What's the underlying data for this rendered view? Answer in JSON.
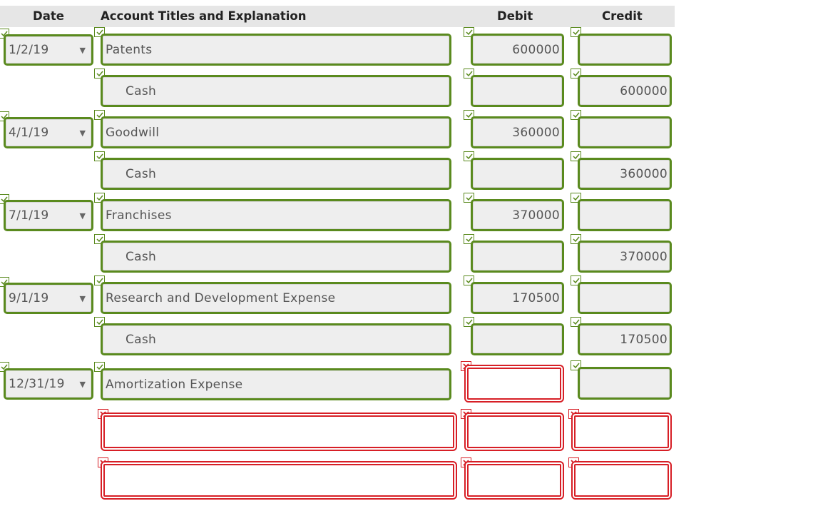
{
  "header": {
    "date": "Date",
    "account": "Account Titles and Explanation",
    "debit": "Debit",
    "credit": "Credit"
  },
  "rows": [
    {
      "date": "1/2/19",
      "account": "Patents",
      "debit": "600000",
      "credit": ""
    },
    {
      "date": "",
      "account": "Cash",
      "debit": "",
      "credit": "600000"
    },
    {
      "date": "4/1/19",
      "account": "Goodwill",
      "debit": "360000",
      "credit": ""
    },
    {
      "date": "",
      "account": "Cash",
      "debit": "",
      "credit": "360000"
    },
    {
      "date": "7/1/19",
      "account": "Franchises",
      "debit": "370000",
      "credit": ""
    },
    {
      "date": "",
      "account": "Cash",
      "debit": "",
      "credit": "370000"
    },
    {
      "date": "9/1/19",
      "account": "Research and Development Expense",
      "debit": "170500",
      "credit": ""
    },
    {
      "date": "",
      "account": "Cash",
      "debit": "",
      "credit": "170500"
    },
    {
      "date": "12/31/19",
      "account": "Amortization Expense",
      "debit": "",
      "credit": ""
    },
    {
      "date": "",
      "account": "",
      "debit": "",
      "credit": ""
    },
    {
      "date": "",
      "account": "",
      "debit": "",
      "credit": ""
    }
  ],
  "status": {
    "correct_color": "#5a8a1e",
    "incorrect_color": "#d71f26",
    "correct_icon": "checkmark-icon",
    "incorrect_icon": "x-mark-icon"
  }
}
